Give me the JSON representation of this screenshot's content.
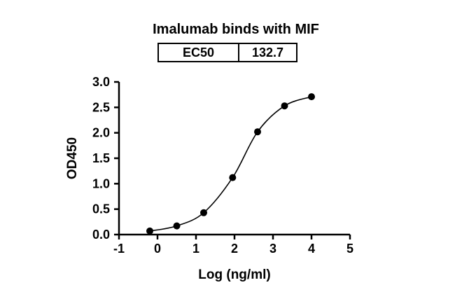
{
  "chart_data": {
    "type": "scatter",
    "title": "Imalumab binds with MIF",
    "xlabel": "Log (ng/ml)",
    "ylabel": "OD450",
    "xlim": [
      -1,
      5
    ],
    "ylim": [
      0,
      3
    ],
    "xticks": [
      -1,
      0,
      1,
      2,
      3,
      4,
      5
    ],
    "xtick_labels": [
      "-1",
      "0",
      "1",
      "2",
      "3",
      "4",
      "5"
    ],
    "yticks": [
      0.0,
      0.5,
      1.0,
      1.5,
      2.0,
      2.5,
      3.0
    ],
    "ytick_labels": [
      "0.0",
      "0.5",
      "1.0",
      "1.5",
      "2.0",
      "2.5",
      "3.0"
    ],
    "grid": false,
    "legend": null,
    "curve": "smooth-sigmoid-through-points",
    "marker": {
      "shape": "circle",
      "color": "#000000",
      "radius": 5
    },
    "line_color": "#000000",
    "axis_color": "#000000",
    "points": [
      {
        "x": -0.2,
        "y": 0.07
      },
      {
        "x": 0.5,
        "y": 0.17
      },
      {
        "x": 1.2,
        "y": 0.43
      },
      {
        "x": 1.95,
        "y": 1.12
      },
      {
        "x": 2.6,
        "y": 2.02
      },
      {
        "x": 3.3,
        "y": 2.53
      },
      {
        "x": 4.0,
        "y": 2.71
      }
    ],
    "ec50": {
      "label": "EC50",
      "value": "132.7"
    }
  }
}
